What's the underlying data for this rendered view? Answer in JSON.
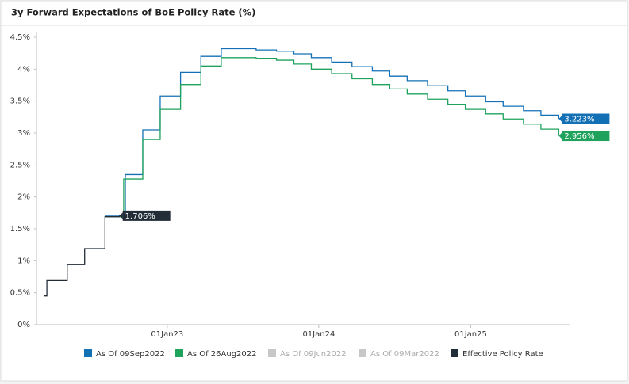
{
  "chart_data": {
    "type": "step-line",
    "title": "3y Forward Expectations of BoE Policy Rate (%)",
    "xlim": [
      "2022-02-20",
      "2025-08-27"
    ],
    "xticks": [
      {
        "value": "2023-01-01",
        "label": "01Jan23"
      },
      {
        "value": "2024-01-01",
        "label": "01Jan24"
      },
      {
        "value": "2025-01-01",
        "label": "01Jan25"
      }
    ],
    "ylim": [
      0,
      4.5
    ],
    "yticks": [
      {
        "value": 0,
        "label": "0%"
      },
      {
        "value": 0.5,
        "label": "0.5%"
      },
      {
        "value": 1,
        "label": "1%"
      },
      {
        "value": 1.5,
        "label": "1.5%"
      },
      {
        "value": 2,
        "label": "2%"
      },
      {
        "value": 2.5,
        "label": "2.5%"
      },
      {
        "value": 3,
        "label": "3%"
      },
      {
        "value": 3.5,
        "label": "3.5%"
      },
      {
        "value": 4,
        "label": "4%"
      },
      {
        "value": 4.5,
        "label": "4.5%"
      }
    ],
    "series": [
      {
        "name": "As Of 09Sep2022",
        "color": "#1470b5",
        "visible": true,
        "end_label": "3.223%",
        "x": [
          "2022-08-04",
          "2022-09-22",
          "2022-11-03",
          "2022-12-15",
          "2023-02-02",
          "2023-03-23",
          "2023-05-11",
          "2023-08-03",
          "2023-09-21",
          "2023-11-02",
          "2023-12-14",
          "2024-02-01",
          "2024-03-21",
          "2024-05-09",
          "2024-06-20",
          "2024-08-01",
          "2024-09-19",
          "2024-11-07",
          "2024-12-19",
          "2025-02-06",
          "2025-03-20",
          "2025-05-08",
          "2025-06-19",
          "2025-08-01"
        ],
        "values": [
          1.71,
          2.35,
          3.05,
          3.58,
          3.95,
          4.2,
          4.32,
          4.3,
          4.28,
          4.24,
          4.18,
          4.11,
          4.04,
          3.97,
          3.89,
          3.82,
          3.74,
          3.66,
          3.58,
          3.49,
          3.42,
          3.35,
          3.28,
          3.223
        ]
      },
      {
        "name": "As Of 26Aug2022",
        "color": "#1fa35c",
        "visible": true,
        "end_label": "2.956%",
        "x": [
          "2022-08-04",
          "2022-09-18",
          "2022-11-03",
          "2022-12-15",
          "2023-02-02",
          "2023-03-23",
          "2023-05-11",
          "2023-08-03",
          "2023-09-21",
          "2023-11-02",
          "2023-12-14",
          "2024-02-01",
          "2024-03-21",
          "2024-05-09",
          "2024-06-20",
          "2024-08-01",
          "2024-09-19",
          "2024-11-07",
          "2024-12-19",
          "2025-02-06",
          "2025-03-20",
          "2025-05-08",
          "2025-06-19",
          "2025-08-01"
        ],
        "values": [
          1.69,
          2.28,
          2.9,
          3.37,
          3.76,
          4.05,
          4.18,
          4.17,
          4.14,
          4.08,
          4.0,
          3.93,
          3.85,
          3.76,
          3.69,
          3.61,
          3.53,
          3.45,
          3.37,
          3.3,
          3.22,
          3.14,
          3.06,
          2.956
        ]
      },
      {
        "name": "As Of 09Jun2022",
        "color": "#c8c8c8",
        "visible": false,
        "x": [],
        "values": []
      },
      {
        "name": "As Of 09Mar2022",
        "color": "#c8c8c8",
        "visible": false,
        "x": [],
        "values": []
      },
      {
        "name": "Effective Policy Rate",
        "color": "#222d38",
        "visible": true,
        "end_label": "1.706%",
        "x": [
          "2022-03-10",
          "2022-03-17",
          "2022-05-05",
          "2022-06-16",
          "2022-08-04",
          "2022-09-08"
        ],
        "values": [
          0.45,
          0.69,
          0.94,
          1.19,
          1.69,
          1.706
        ]
      }
    ]
  }
}
